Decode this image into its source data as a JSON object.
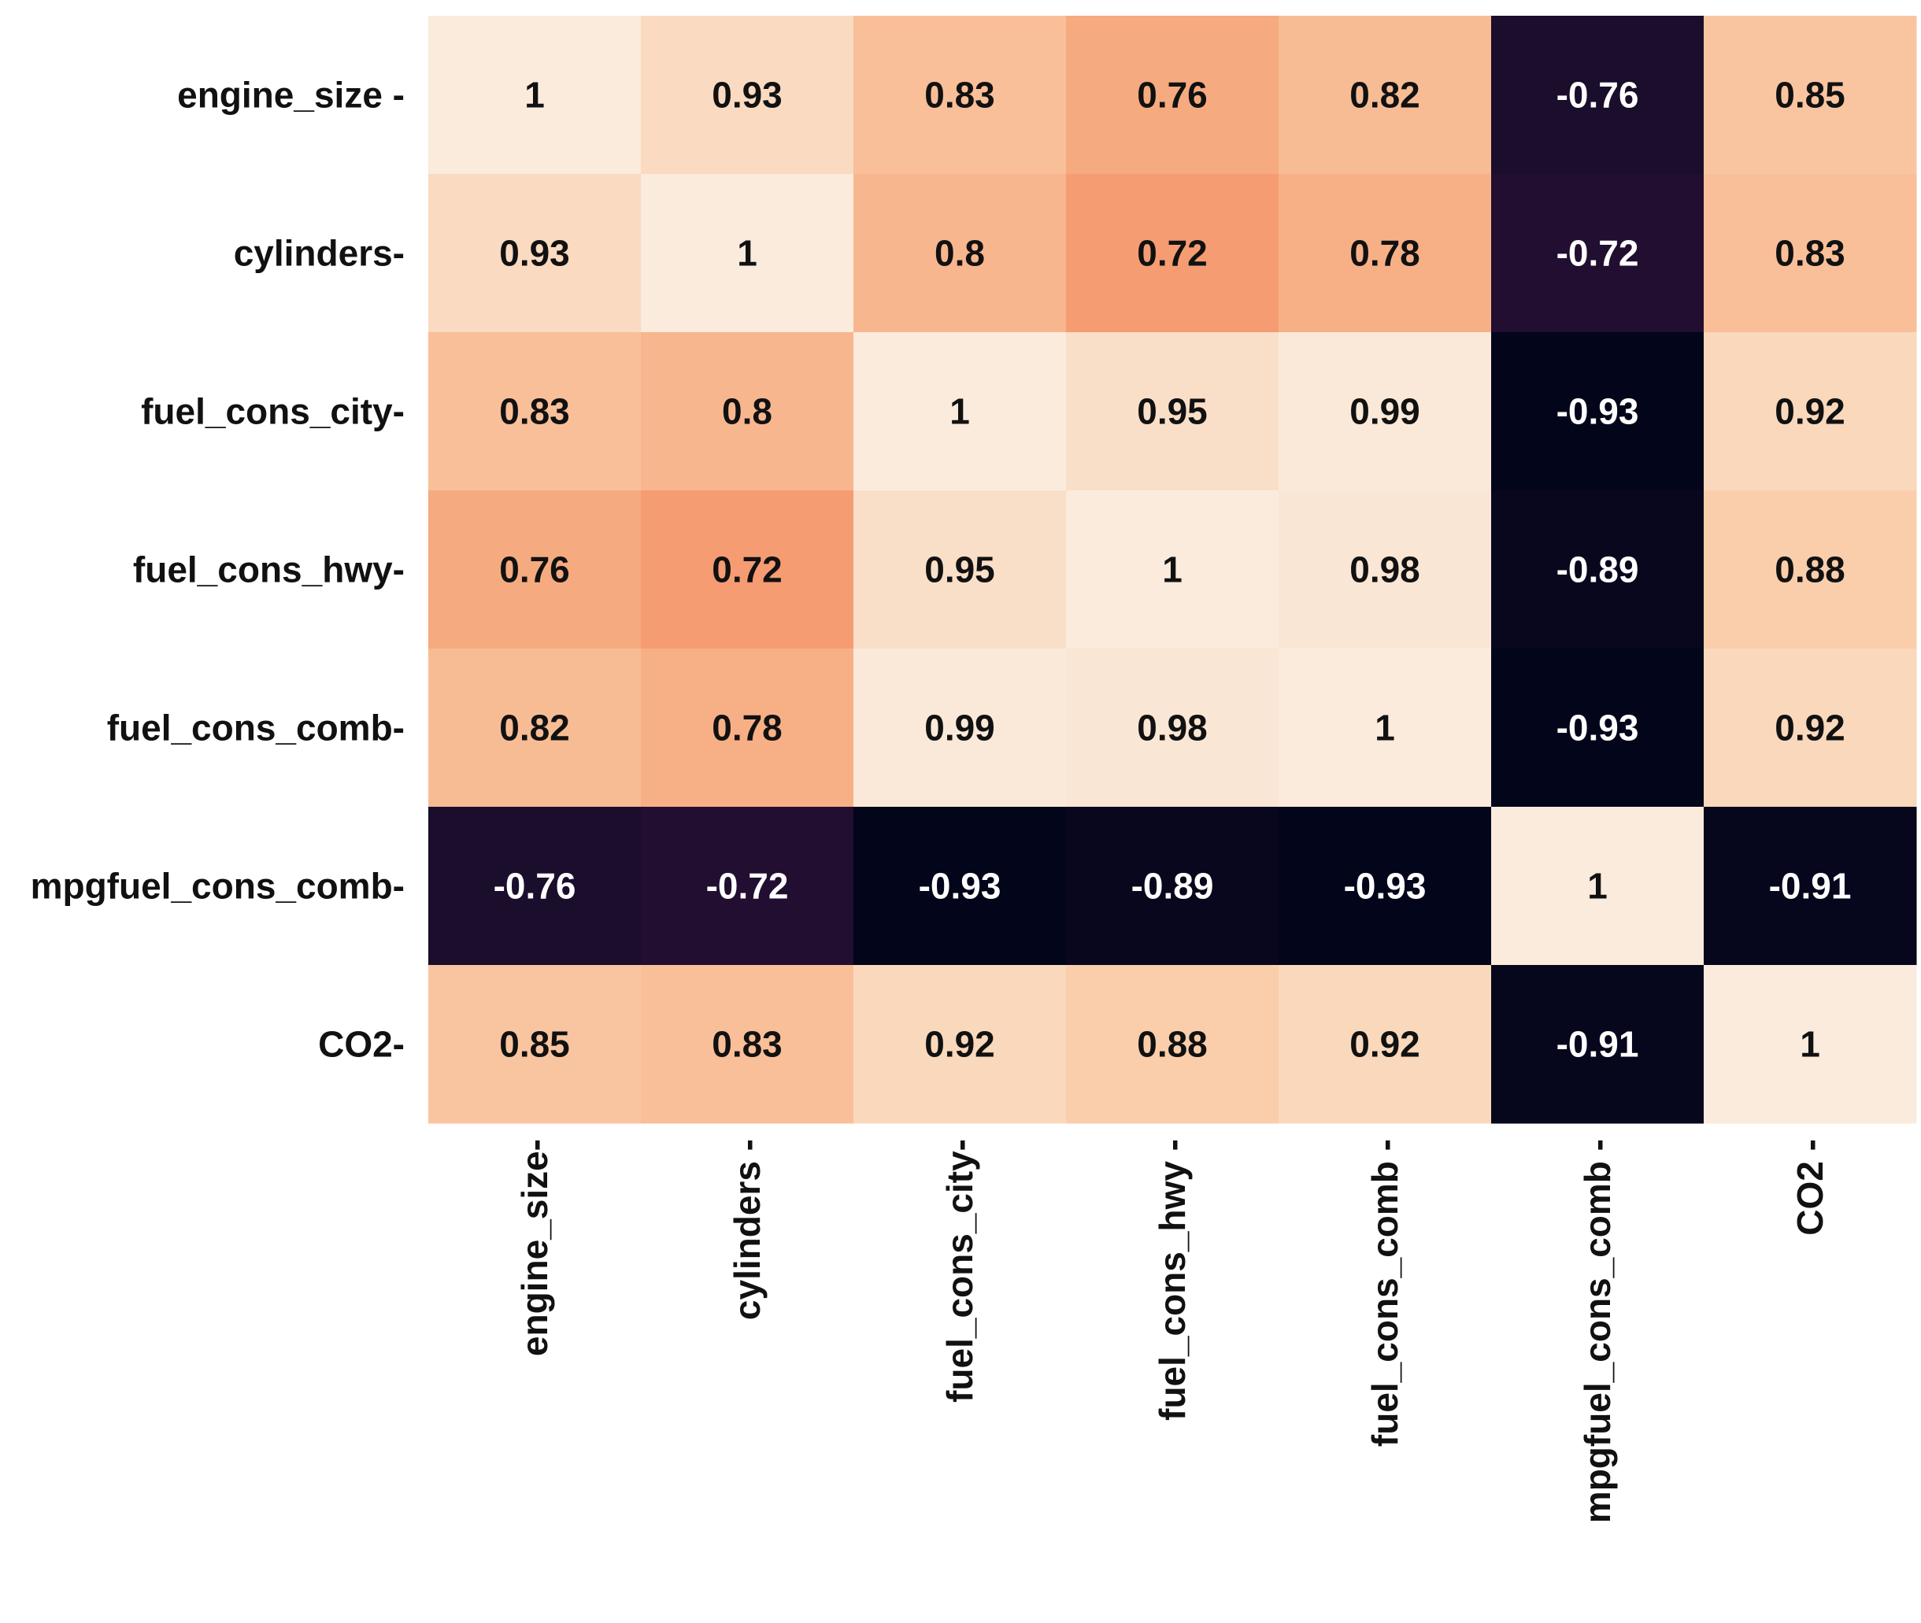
{
  "chart_data": {
    "type": "heatmap",
    "title": "",
    "xlabel": "",
    "ylabel": "",
    "row_labels": [
      "engine_size -",
      "cylinders-",
      "fuel_cons_city-",
      "fuel_cons_hwy-",
      "fuel_cons_comb-",
      "mpgfuel_cons_comb-",
      "CO2-"
    ],
    "col_labels": [
      "engine_size-",
      "cylinders -",
      "fuel_cons_city-",
      "fuel_cons_hwy -",
      "fuel_cons_comb -",
      "mpgfuel_cons_comb -",
      "CO2 -"
    ],
    "values": [
      [
        1,
        0.93,
        0.83,
        0.76,
        0.82,
        -0.76,
        0.85
      ],
      [
        0.93,
        1,
        0.8,
        0.72,
        0.78,
        -0.72,
        0.83
      ],
      [
        0.83,
        0.8,
        1,
        0.95,
        0.99,
        -0.93,
        0.92
      ],
      [
        0.76,
        0.72,
        0.95,
        1,
        0.98,
        -0.89,
        0.88
      ],
      [
        0.82,
        0.78,
        0.99,
        0.98,
        1,
        -0.93,
        0.92
      ],
      [
        -0.76,
        -0.72,
        -0.93,
        -0.89,
        -0.93,
        1,
        -0.91
      ],
      [
        0.85,
        0.83,
        0.92,
        0.88,
        0.92,
        -0.91,
        1
      ]
    ],
    "value_labels": [
      [
        "1",
        "0.93",
        "0.83",
        "0.76",
        "0.82",
        "-0.76",
        "0.85"
      ],
      [
        "0.93",
        "1",
        "0.8",
        "0.72",
        "0.78",
        "-0.72",
        "0.83"
      ],
      [
        "0.83",
        "0.8",
        "1",
        "0.95",
        "0.99",
        "-0.93",
        "0.92"
      ],
      [
        "0.76",
        "0.72",
        "0.95",
        "1",
        "0.98",
        "-0.89",
        "0.88"
      ],
      [
        "0.82",
        "0.78",
        "0.99",
        "0.98",
        "1",
        "-0.93",
        "0.92"
      ],
      [
        "-0.76",
        "-0.72",
        "-0.93",
        "-0.89",
        "-0.93",
        "1",
        "-0.91"
      ],
      [
        "0.85",
        "0.83",
        "0.92",
        "0.88",
        "0.92",
        "-0.91",
        "1"
      ]
    ],
    "color_range": [
      -0.93,
      1
    ],
    "colormap": "rocket",
    "colorbar": false,
    "grid": false
  }
}
